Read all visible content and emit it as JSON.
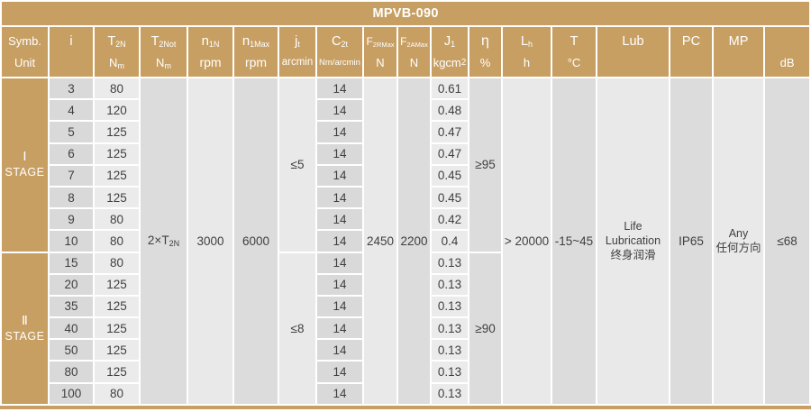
{
  "title": "MPVB-090",
  "colors": {
    "tan_header": "#C79F62",
    "header_text": "#FFFFFF",
    "body_text": "#3F3F3F",
    "cell_dark": "#D9D9D9",
    "cell_light": "#EBEBEB",
    "merged_dark": "#DCDCDC",
    "merged_light": "#E9E9E9",
    "separator": "#FFFFFF"
  },
  "columns": [
    {
      "id": "symb",
      "sym": "Symb.",
      "sub": "",
      "unit": "Unit",
      "usub": "",
      "shade": "none"
    },
    {
      "id": "i",
      "sym": "i",
      "sub": "",
      "unit": "",
      "usub": "",
      "shade": "dark"
    },
    {
      "id": "t2n",
      "sym": "T",
      "sub": "2N",
      "unit": "N",
      "usub": "m",
      "shade": "light"
    },
    {
      "id": "t2not",
      "sym": "T",
      "sub": "2Not",
      "unit": "N",
      "usub": "m",
      "shade": "mdark"
    },
    {
      "id": "n1n",
      "sym": "n",
      "sub": "1N",
      "unit": "rpm",
      "usub": "",
      "shade": "mlight"
    },
    {
      "id": "n1max",
      "sym": "n",
      "sub": "1Max",
      "unit": "rpm",
      "usub": "",
      "shade": "mdark"
    },
    {
      "id": "jt",
      "sym": "j",
      "sub": "t",
      "unit": "arcmin",
      "usub": "",
      "shade": "mlight"
    },
    {
      "id": "c2t",
      "sym": "C",
      "sub": "2t",
      "unit": "Nm/arcmin",
      "usub": "",
      "shade": "dark"
    },
    {
      "id": "f2rmax",
      "sym": "F",
      "sub": "2RMax",
      "unit": "N",
      "usub": "",
      "shade": "mlight"
    },
    {
      "id": "f2amax",
      "sym": "F",
      "sub": "2AMax",
      "unit": "N",
      "usub": "",
      "shade": "mdark"
    },
    {
      "id": "j1",
      "sym": "J",
      "sub": "1",
      "unit": "kgcm",
      "usup": "2",
      "shade": "light"
    },
    {
      "id": "eta",
      "sym": "η",
      "sub": "",
      "unit": "%",
      "usub": "",
      "shade": "mdark"
    },
    {
      "id": "lh",
      "sym": "L",
      "sub": "h",
      "unit": "h",
      "usub": "",
      "shade": "mlight"
    },
    {
      "id": "t",
      "sym": "T",
      "sub": "",
      "unit": "°C",
      "usub": "",
      "shade": "mdark"
    },
    {
      "id": "lub",
      "sym": "Lub",
      "sub": "",
      "unit": "",
      "usub": "",
      "shade": "mlight"
    },
    {
      "id": "pc",
      "sym": "PC",
      "sub": "",
      "unit": "",
      "usub": "",
      "shade": "mdark"
    },
    {
      "id": "mp",
      "sym": "MP",
      "sub": "",
      "unit": "",
      "usub": "",
      "shade": "mlight"
    },
    {
      "id": "db",
      "sym": "",
      "sub": "",
      "unit": "dB",
      "usub": "",
      "shade": "mdark"
    }
  ],
  "stages": [
    {
      "numeral": "Ⅰ",
      "word": "STAGE",
      "jt": "≤5",
      "eta": "≥95",
      "rows": [
        {
          "i": "3",
          "t2n": "80",
          "c2t": "14",
          "j1": "0.61"
        },
        {
          "i": "4",
          "t2n": "120",
          "c2t": "14",
          "j1": "0.48"
        },
        {
          "i": "5",
          "t2n": "125",
          "c2t": "14",
          "j1": "0.47"
        },
        {
          "i": "6",
          "t2n": "125",
          "c2t": "14",
          "j1": "0.47"
        },
        {
          "i": "7",
          "t2n": "125",
          "c2t": "14",
          "j1": "0.45"
        },
        {
          "i": "8",
          "t2n": "125",
          "c2t": "14",
          "j1": "0.45"
        },
        {
          "i": "9",
          "t2n": "80",
          "c2t": "14",
          "j1": "0.42"
        },
        {
          "i": "10",
          "t2n": "80",
          "c2t": "14",
          "j1": "0.4"
        }
      ]
    },
    {
      "numeral": "Ⅱ",
      "word": "STAGE",
      "jt": "≤8",
      "eta": "≥90",
      "rows": [
        {
          "i": "15",
          "t2n": "80",
          "c2t": "14",
          "j1": "0.13"
        },
        {
          "i": "20",
          "t2n": "125",
          "c2t": "14",
          "j1": "0.13"
        },
        {
          "i": "35",
          "t2n": "125",
          "c2t": "14",
          "j1": "0.13"
        },
        {
          "i": "40",
          "t2n": "125",
          "c2t": "14",
          "j1": "0.13"
        },
        {
          "i": "50",
          "t2n": "125",
          "c2t": "14",
          "j1": "0.13"
        },
        {
          "i": "80",
          "t2n": "125",
          "c2t": "14",
          "j1": "0.13"
        },
        {
          "i": "100",
          "t2n": "80",
          "c2t": "14",
          "j1": "0.13"
        }
      ]
    }
  ],
  "merged": {
    "t2not_base": "2×T",
    "t2not_sub": "2N",
    "n1n": "3000",
    "n1max": "6000",
    "f2rmax": "2450",
    "f2amax": "2200",
    "lh": "> 20000",
    "t": "-15~45",
    "lub_lines": [
      "Life",
      "Lubrication",
      "终身润滑"
    ],
    "pc": "IP65",
    "mp_lines": [
      "Any",
      "任何方向"
    ],
    "db": "≤68"
  }
}
